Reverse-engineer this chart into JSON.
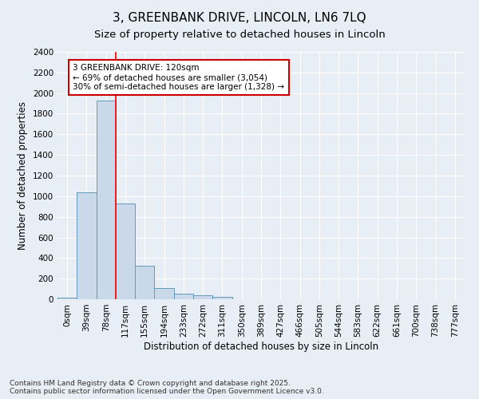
{
  "title": "3, GREENBANK DRIVE, LINCOLN, LN6 7LQ",
  "subtitle": "Size of property relative to detached houses in Lincoln",
  "xlabel": "Distribution of detached houses by size in Lincoln",
  "ylabel": "Number of detached properties",
  "bar_color": "#c9d9ea",
  "bar_edge_color": "#6699bb",
  "categories": [
    "0sqm",
    "39sqm",
    "78sqm",
    "117sqm",
    "155sqm",
    "194sqm",
    "233sqm",
    "272sqm",
    "311sqm",
    "350sqm",
    "389sqm",
    "427sqm",
    "466sqm",
    "505sqm",
    "544sqm",
    "583sqm",
    "622sqm",
    "661sqm",
    "700sqm",
    "738sqm",
    "777sqm"
  ],
  "values": [
    15,
    1040,
    1930,
    930,
    325,
    110,
    55,
    35,
    25,
    0,
    0,
    0,
    0,
    0,
    0,
    0,
    0,
    0,
    0,
    0,
    0
  ],
  "red_line_x": 3,
  "annotation_line1": "3 GREENBANK DRIVE: 120sqm",
  "annotation_line2": "← 69% of detached houses are smaller (3,054)",
  "annotation_line3": "30% of semi-detached houses are larger (1,328) →",
  "annotation_box_color": "#ffffff",
  "annotation_box_edge_color": "#cc0000",
  "ylim": [
    0,
    2400
  ],
  "yticks": [
    0,
    200,
    400,
    600,
    800,
    1000,
    1200,
    1400,
    1600,
    1800,
    2000,
    2200,
    2400
  ],
  "footer_text": "Contains HM Land Registry data © Crown copyright and database right 2025.\nContains public sector information licensed under the Open Government Licence v3.0.",
  "background_color": "#e8eef5",
  "plot_bg_color": "#e8eef5",
  "grid_color": "#ffffff",
  "title_fontsize": 11,
  "subtitle_fontsize": 9.5,
  "label_fontsize": 8.5,
  "tick_fontsize": 7.5,
  "footer_fontsize": 6.5,
  "annotation_fontsize": 7.5
}
